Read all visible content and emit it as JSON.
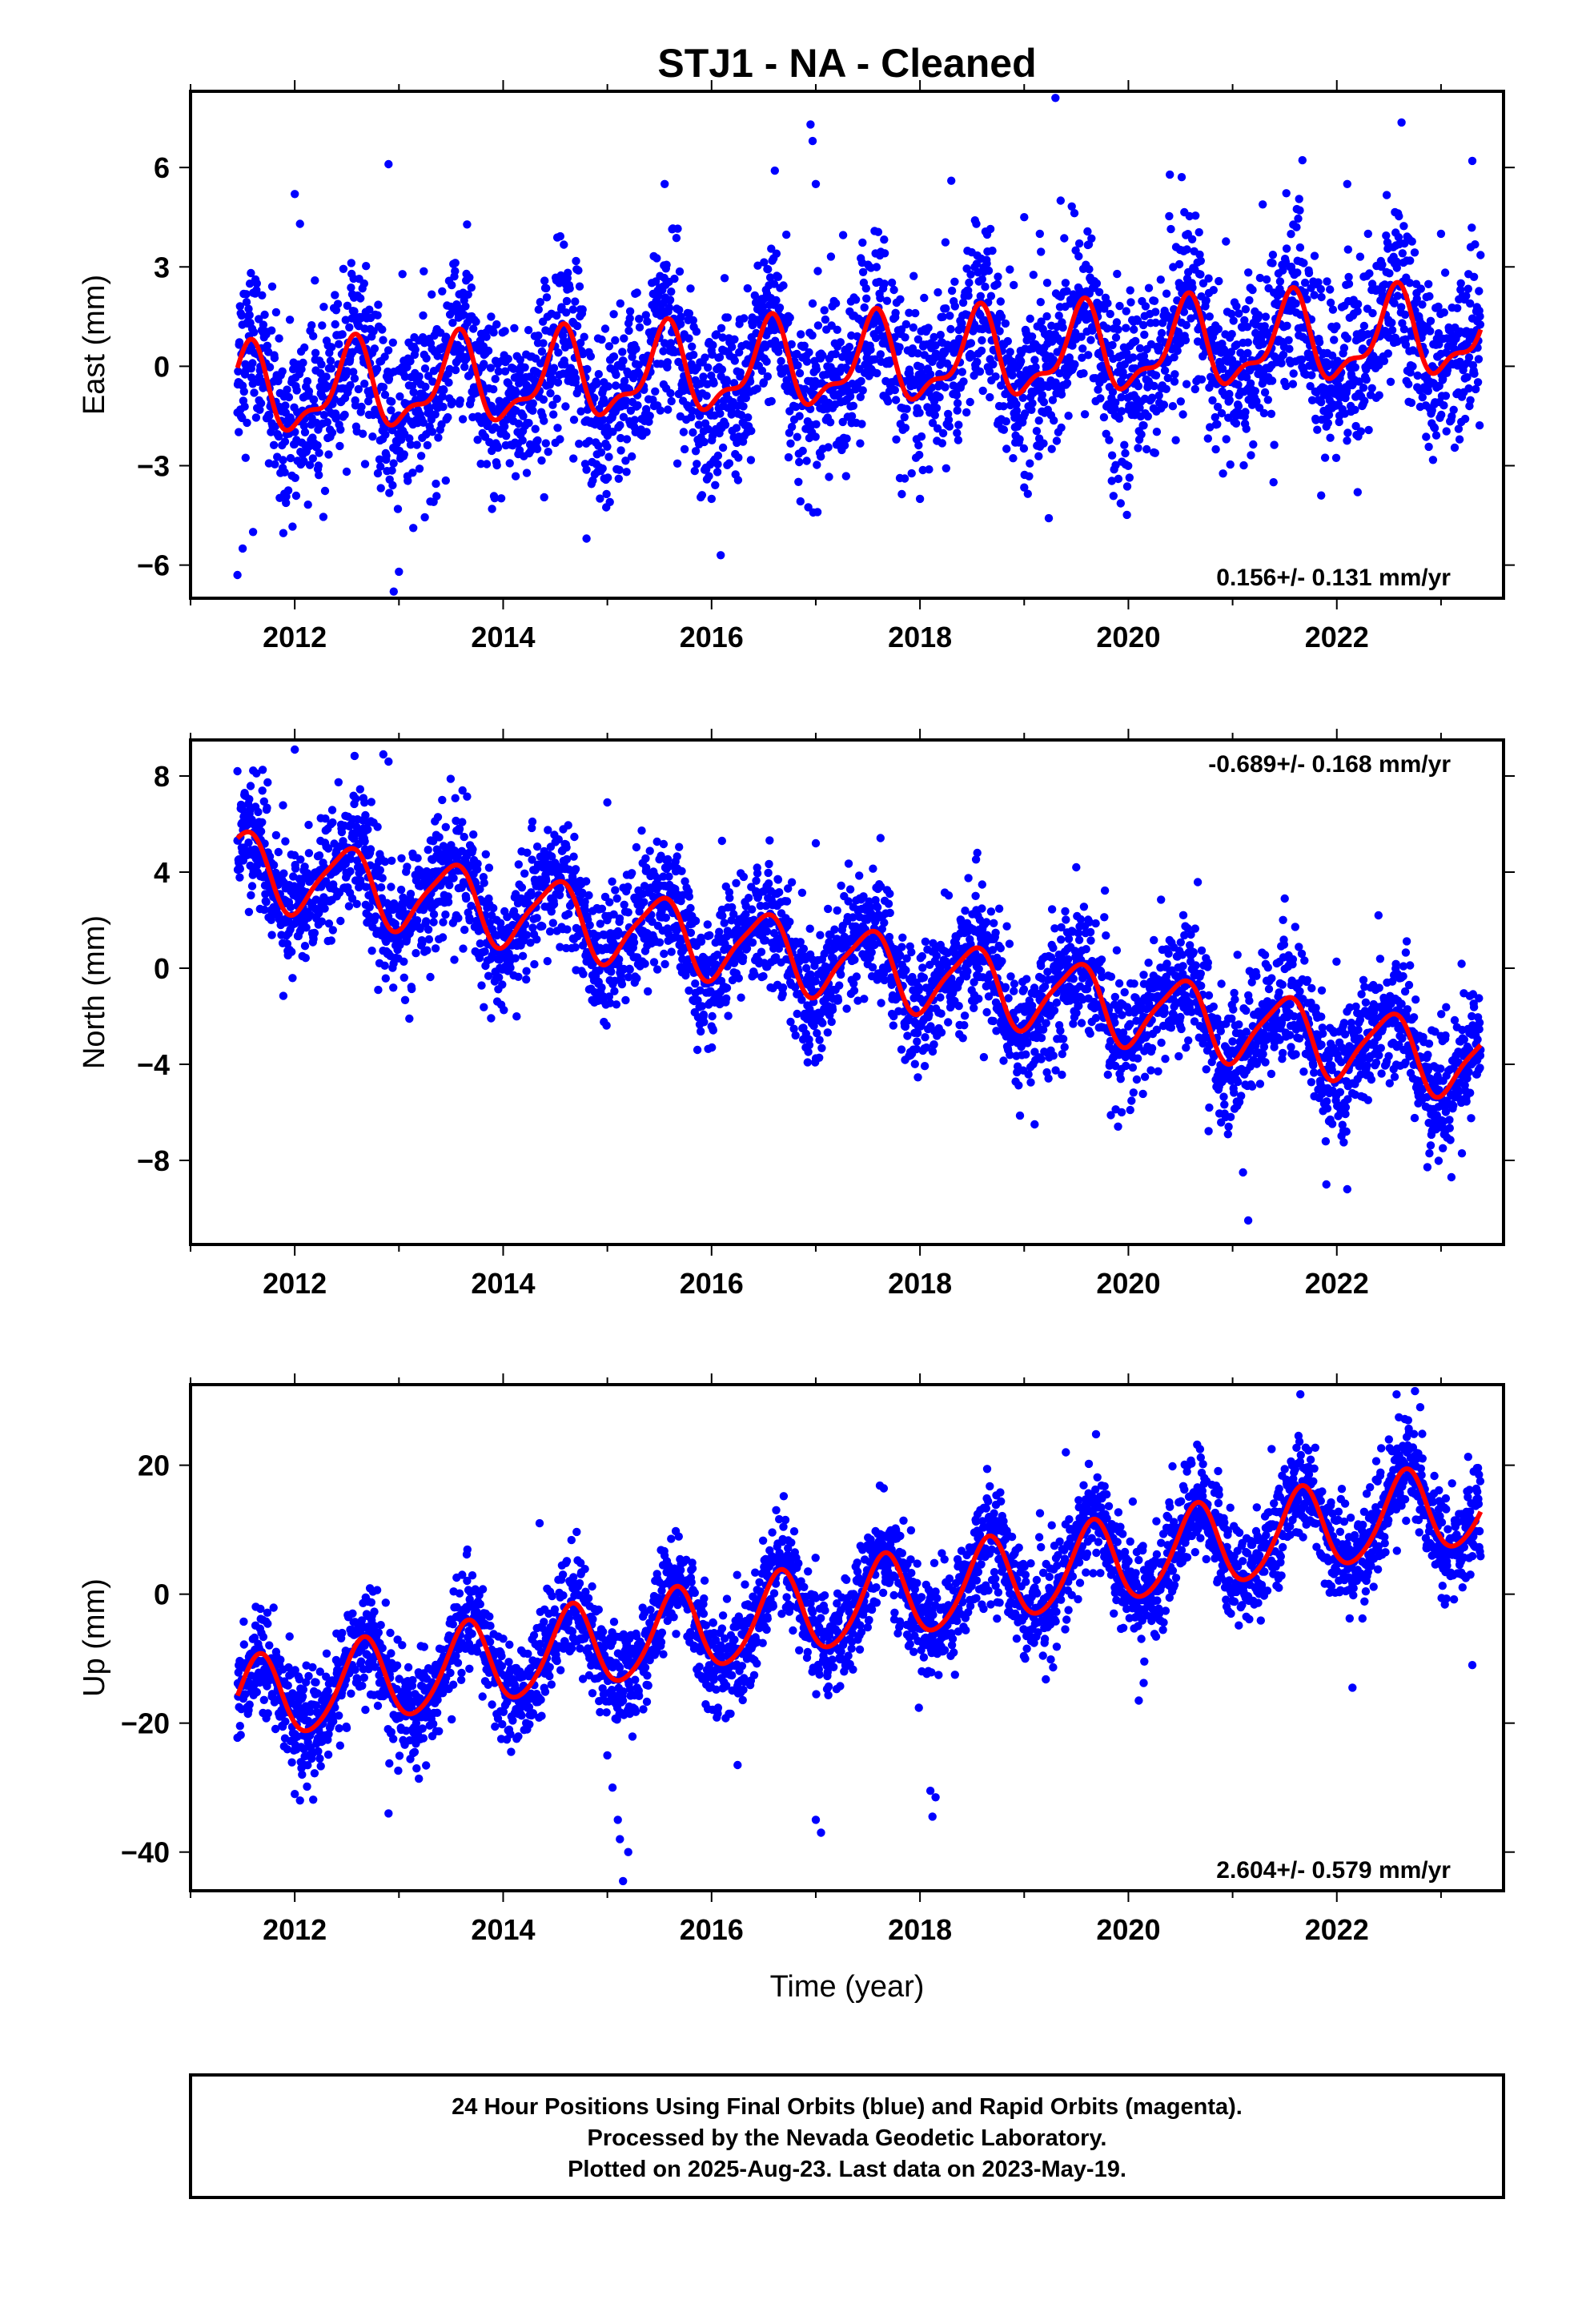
{
  "title": "STJ1  - NA - Cleaned",
  "xlabel": "Time (year)",
  "x_ticks": [
    2012,
    2014,
    2016,
    2018,
    2020,
    2022
  ],
  "x_range": [
    2011.0,
    2023.6
  ],
  "footer": {
    "line1": "24 Hour Positions Using Final Orbits (blue) and Rapid Orbits (magenta).",
    "line2": "Processed by the Nevada Geodetic Laboratory.",
    "line3": "Plotted on 2025-Aug-23. Last data on 2023-May-19."
  },
  "colors": {
    "points": "#0000ff",
    "model": "#ff0000",
    "frame": "#000000"
  },
  "chart_data": [
    {
      "type": "scatter",
      "ylabel": "East (mm)",
      "rate": "0.156+/- 0.131 mm/yr",
      "rate_position": "bottom-right",
      "ylim": [
        -7,
        8.3
      ],
      "y_ticks": [
        -6,
        -3,
        0,
        3,
        6
      ],
      "x_range": [
        2011.0,
        2023.6
      ],
      "model": {
        "trend_rate": 0.156,
        "intercept": 0.0,
        "annual_amp": 1.2,
        "annual_peak_frac": 0.55,
        "semiannual_amp": 0.5,
        "semiannual_peak_frac": 0.1
      },
      "scatter_sigma": 1.3,
      "outliers": [
        [
          2011.45,
          -6.3
        ],
        [
          2011.5,
          -5.5
        ],
        [
          2011.6,
          -5.0
        ],
        [
          2012.0,
          5.2
        ],
        [
          2012.05,
          4.3
        ],
        [
          2012.9,
          6.1
        ],
        [
          2012.95,
          -6.8
        ],
        [
          2013.0,
          -6.2
        ],
        [
          2014.8,
          -5.2
        ],
        [
          2015.55,
          5.5
        ],
        [
          2016.0,
          -4.0
        ],
        [
          2016.95,
          7.3
        ],
        [
          2016.97,
          6.8
        ],
        [
          2017.0,
          5.5
        ],
        [
          2018.0,
          -4.0
        ],
        [
          2018.3,
          5.6
        ],
        [
          2019.0,
          4.5
        ],
        [
          2019.15,
          4.0
        ],
        [
          2019.3,
          8.1
        ],
        [
          2019.35,
          5.0
        ],
        [
          2021.85,
          -3.9
        ],
        [
          2022.1,
          5.5
        ],
        [
          2022.2,
          -3.8
        ],
        [
          2022.3,
          4.0
        ],
        [
          2023.0,
          4.0
        ],
        [
          2023.3,
          6.2
        ]
      ],
      "data_start": 2011.45,
      "data_end": 2023.38
    },
    {
      "type": "scatter",
      "ylabel": "North (mm)",
      "rate": "-0.689+/- 0.168 mm/yr",
      "rate_position": "top-right",
      "ylim": [
        -11.5,
        9.5
      ],
      "y_ticks": [
        -8,
        -4,
        0,
        4,
        8
      ],
      "x_range": [
        2011.0,
        2023.6
      ],
      "model": {
        "trend_rate": -0.689,
        "intercept": 0.4,
        "annual_amp": 1.5,
        "annual_peak_frac": 0.5,
        "semiannual_amp": 0.3,
        "semiannual_peak_frac": 0.15
      },
      "scatter_sigma": 1.3,
      "outliers": [
        [
          2011.45,
          8.2
        ],
        [
          2011.5,
          6.6
        ],
        [
          2012.0,
          9.1
        ],
        [
          2012.85,
          8.9
        ],
        [
          2012.9,
          8.6
        ],
        [
          2013.1,
          -2.1
        ],
        [
          2015.0,
          6.9
        ],
        [
          2016.1,
          5.3
        ],
        [
          2017.0,
          5.2
        ],
        [
          2018.55,
          4.8
        ],
        [
          2019.1,
          -6.5
        ],
        [
          2019.5,
          4.2
        ],
        [
          2020.6,
          1.4
        ],
        [
          2021.1,
          -8.5
        ],
        [
          2021.15,
          -10.5
        ],
        [
          2021.5,
          2.9
        ],
        [
          2021.9,
          -9.0
        ],
        [
          2022.1,
          -9.2
        ],
        [
          2022.4,
          2.2
        ],
        [
          2023.1,
          -8.7
        ]
      ],
      "data_start": 2011.45,
      "data_end": 2023.38
    },
    {
      "type": "scatter",
      "ylabel": "Up (mm)",
      "rate": "2.604+/- 0.579 mm/yr",
      "rate_position": "bottom-right",
      "ylim": [
        -46,
        32.5
      ],
      "y_ticks": [
        -40,
        -20,
        0,
        20
      ],
      "x_range": [
        2011.0,
        2023.6
      ],
      "model": {
        "trend_rate": 2.604,
        "intercept": -2.5,
        "annual_amp": 6.5,
        "annual_peak_frac": 0.65,
        "semiannual_amp": 0.8,
        "semiannual_peak_frac": 0.2
      },
      "scatter_sigma": 4.0,
      "outliers": [
        [
          2012.0,
          -31.0
        ],
        [
          2012.05,
          -32.0
        ],
        [
          2012.9,
          -34.0
        ],
        [
          2014.35,
          11.0
        ],
        [
          2015.0,
          -25.0
        ],
        [
          2015.05,
          -30.0
        ],
        [
          2015.1,
          -35.0
        ],
        [
          2015.12,
          -38.0
        ],
        [
          2015.15,
          -44.5
        ],
        [
          2015.2,
          -40.0
        ],
        [
          2016.25,
          -26.5
        ],
        [
          2017.0,
          -35.0
        ],
        [
          2017.05,
          -37.0
        ],
        [
          2018.1,
          -30.5
        ],
        [
          2018.15,
          -31.5
        ],
        [
          2018.12,
          -34.5
        ],
        [
          2019.4,
          22.0
        ],
        [
          2020.1,
          -16.5
        ],
        [
          2021.65,
          31.0
        ],
        [
          2022.15,
          -14.5
        ],
        [
          2022.5,
          24.0
        ],
        [
          2022.75,
          31.5
        ],
        [
          2022.8,
          29.0
        ],
        [
          2023.3,
          -11.0
        ]
      ],
      "data_start": 2011.45,
      "data_end": 2023.38
    }
  ]
}
